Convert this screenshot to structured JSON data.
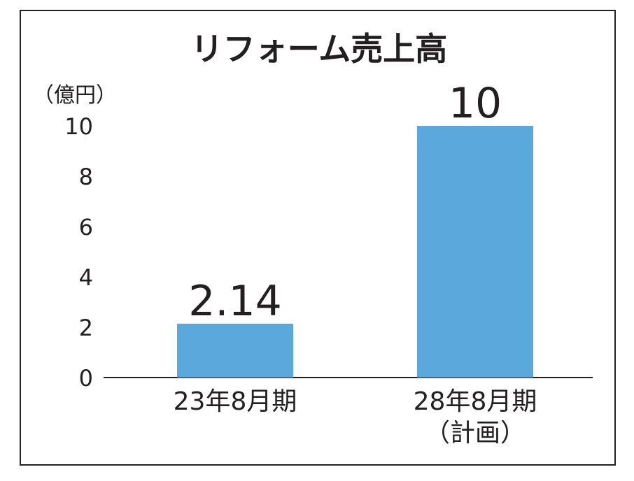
{
  "chart_data": {
    "type": "bar",
    "title": "リフォーム売上高",
    "ylabel": "（億円）",
    "categories": [
      [
        "23年8月期"
      ],
      [
        "28年8月期",
        "（計画）"
      ]
    ],
    "values": [
      2.14,
      10
    ],
    "value_labels": [
      "2.14",
      "10"
    ],
    "yticks": [
      "0",
      "2",
      "4",
      "6",
      "8",
      "10"
    ],
    "ylim": [
      0,
      10
    ],
    "grid": false,
    "bar_color": "#5ba8dc"
  }
}
